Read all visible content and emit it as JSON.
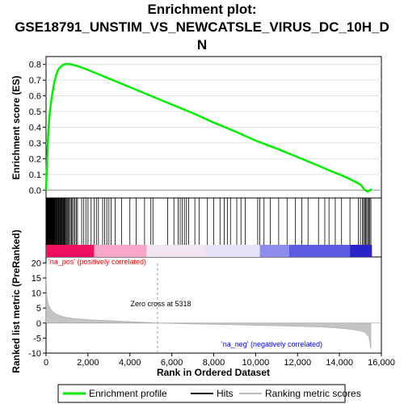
{
  "chart_data": {
    "type": "line",
    "title_lines": [
      "Enrichment plot:",
      "GSE18791_UNSTIM_VS_NEWCATSLE_VIRUS_DC_10H_D",
      "N"
    ],
    "xlabel": "Rank in Ordered Dataset",
    "ylabel_top": "Enrichment score (ES)",
    "ylabel_bottom": "Ranked list metric (PreRanked)",
    "xlim": [
      0,
      16000
    ],
    "x_ticks": [
      0,
      2000,
      4000,
      6000,
      8000,
      10000,
      12000,
      14000,
      16000
    ],
    "x_tick_labels": [
      "0",
      "2,000",
      "4,000",
      "6,000",
      "8,000",
      "10,000",
      "12,000",
      "14,000",
      "16,000"
    ],
    "es": {
      "ylim": [
        -0.05,
        0.85
      ],
      "y_ticks": [
        0.0,
        0.1,
        0.2,
        0.3,
        0.4,
        0.5,
        0.6,
        0.7,
        0.8
      ],
      "y_tick_labels": [
        "0.0",
        "0.1",
        "0.2",
        "0.3",
        "0.4",
        "0.5",
        "0.6",
        "0.7",
        "0.8"
      ],
      "color": "#00ee00",
      "points": [
        [
          0,
          0.0
        ],
        [
          30,
          0.12
        ],
        [
          60,
          0.22
        ],
        [
          100,
          0.35
        ],
        [
          150,
          0.45
        ],
        [
          200,
          0.52
        ],
        [
          260,
          0.58
        ],
        [
          330,
          0.64
        ],
        [
          400,
          0.69
        ],
        [
          480,
          0.73
        ],
        [
          560,
          0.76
        ],
        [
          650,
          0.78
        ],
        [
          750,
          0.79
        ],
        [
          850,
          0.8
        ],
        [
          1000,
          0.803
        ],
        [
          1200,
          0.8
        ],
        [
          1600,
          0.785
        ],
        [
          2000,
          0.765
        ],
        [
          3000,
          0.71
        ],
        [
          4000,
          0.655
        ],
        [
          5000,
          0.6
        ],
        [
          6000,
          0.545
        ],
        [
          7000,
          0.49
        ],
        [
          8000,
          0.43
        ],
        [
          9000,
          0.375
        ],
        [
          10000,
          0.315
        ],
        [
          10500,
          0.29
        ],
        [
          11000,
          0.265
        ],
        [
          12000,
          0.21
        ],
        [
          13000,
          0.155
        ],
        [
          13600,
          0.12
        ],
        [
          14000,
          0.1
        ],
        [
          14500,
          0.07
        ],
        [
          14800,
          0.05
        ],
        [
          15000,
          0.035
        ],
        [
          15100,
          0.02
        ],
        [
          15200,
          0.0
        ],
        [
          15350,
          -0.01
        ],
        [
          15450,
          0.0
        ],
        [
          15550,
          0.005
        ]
      ]
    },
    "hits": [
      10,
      25,
      40,
      55,
      70,
      85,
      100,
      115,
      130,
      150,
      165,
      180,
      200,
      220,
      240,
      260,
      280,
      300,
      320,
      340,
      360,
      380,
      400,
      420,
      445,
      470,
      495,
      520,
      550,
      580,
      610,
      640,
      670,
      700,
      730,
      760,
      790,
      820,
      850,
      880,
      910,
      950,
      990,
      1030,
      1070,
      1110,
      1160,
      1210,
      1260,
      1320,
      1380,
      1440,
      1500,
      1700,
      1800,
      1900,
      2000,
      2150,
      2300,
      2400,
      2500,
      2700,
      2800,
      2900,
      3000,
      3100,
      3300,
      3600,
      4000,
      4300,
      4700,
      5000,
      5100,
      5800,
      6100,
      6300,
      6400,
      6500,
      6600,
      6700,
      6800,
      7100,
      7300,
      7700,
      8000,
      8300,
      8500,
      8650,
      8800,
      9100,
      9300,
      9500,
      10100,
      10200,
      10400,
      10700,
      11100,
      11500,
      11900,
      12200,
      12500,
      13000,
      13300,
      13500,
      13800,
      14100,
      14500,
      14900,
      15000,
      15100,
      15150,
      15200,
      15250,
      15300,
      15350,
      15400,
      15450,
      15500
    ],
    "heatmap_segments": [
      {
        "from": 0,
        "to": 2300,
        "color": "#f01060"
      },
      {
        "from": 2300,
        "to": 4800,
        "color": "#f6a6c8"
      },
      {
        "from": 4800,
        "to": 7600,
        "color": "#f2e4f0"
      },
      {
        "from": 7600,
        "to": 10200,
        "color": "#e4e4f6"
      },
      {
        "from": 10200,
        "to": 11600,
        "color": "#8c8cec"
      },
      {
        "from": 11600,
        "to": 14500,
        "color": "#5a5ae2"
      },
      {
        "from": 14500,
        "to": 15550,
        "color": "#2a22c8"
      }
    ],
    "metric": {
      "ylim": [
        -10,
        22
      ],
      "y_ticks": [
        -10,
        -5,
        0,
        5,
        10,
        15,
        20
      ],
      "y_tick_labels": [
        "-10",
        "-5",
        "0",
        "5",
        "10",
        "15",
        "20"
      ],
      "points": [
        [
          0,
          20
        ],
        [
          15,
          13
        ],
        [
          40,
          9
        ],
        [
          80,
          7
        ],
        [
          150,
          5.5
        ],
        [
          250,
          4.3
        ],
        [
          400,
          3.3
        ],
        [
          600,
          2.6
        ],
        [
          900,
          2.0
        ],
        [
          1300,
          1.5
        ],
        [
          2000,
          1.1
        ],
        [
          3000,
          0.8
        ],
        [
          4000,
          0.5
        ],
        [
          5318,
          0.0
        ],
        [
          7000,
          -0.3
        ],
        [
          9000,
          -0.6
        ],
        [
          11000,
          -0.9
        ],
        [
          13000,
          -1.3
        ],
        [
          14000,
          -1.7
        ],
        [
          14800,
          -2.3
        ],
        [
          15200,
          -3.0
        ],
        [
          15400,
          -4.5
        ],
        [
          15500,
          -8.5
        ]
      ],
      "zero_cross_x": 5318,
      "zero_cross_label": "Zero cross at 5318",
      "pos_label": "'na_pos' (positively correlated)",
      "neg_label": "'na_neg' (negatively correlated)",
      "pos_color": "#ff0000",
      "neg_color": "#0000ff"
    },
    "legend": {
      "placement": "bottom",
      "items": [
        {
          "label": "Enrichment profile",
          "kind": "line",
          "color": "#00ee00"
        },
        {
          "label": "Hits",
          "kind": "line",
          "color": "#000000"
        },
        {
          "label": "Ranking metric scores",
          "kind": "line",
          "color": "#bbbbbb"
        }
      ]
    }
  }
}
